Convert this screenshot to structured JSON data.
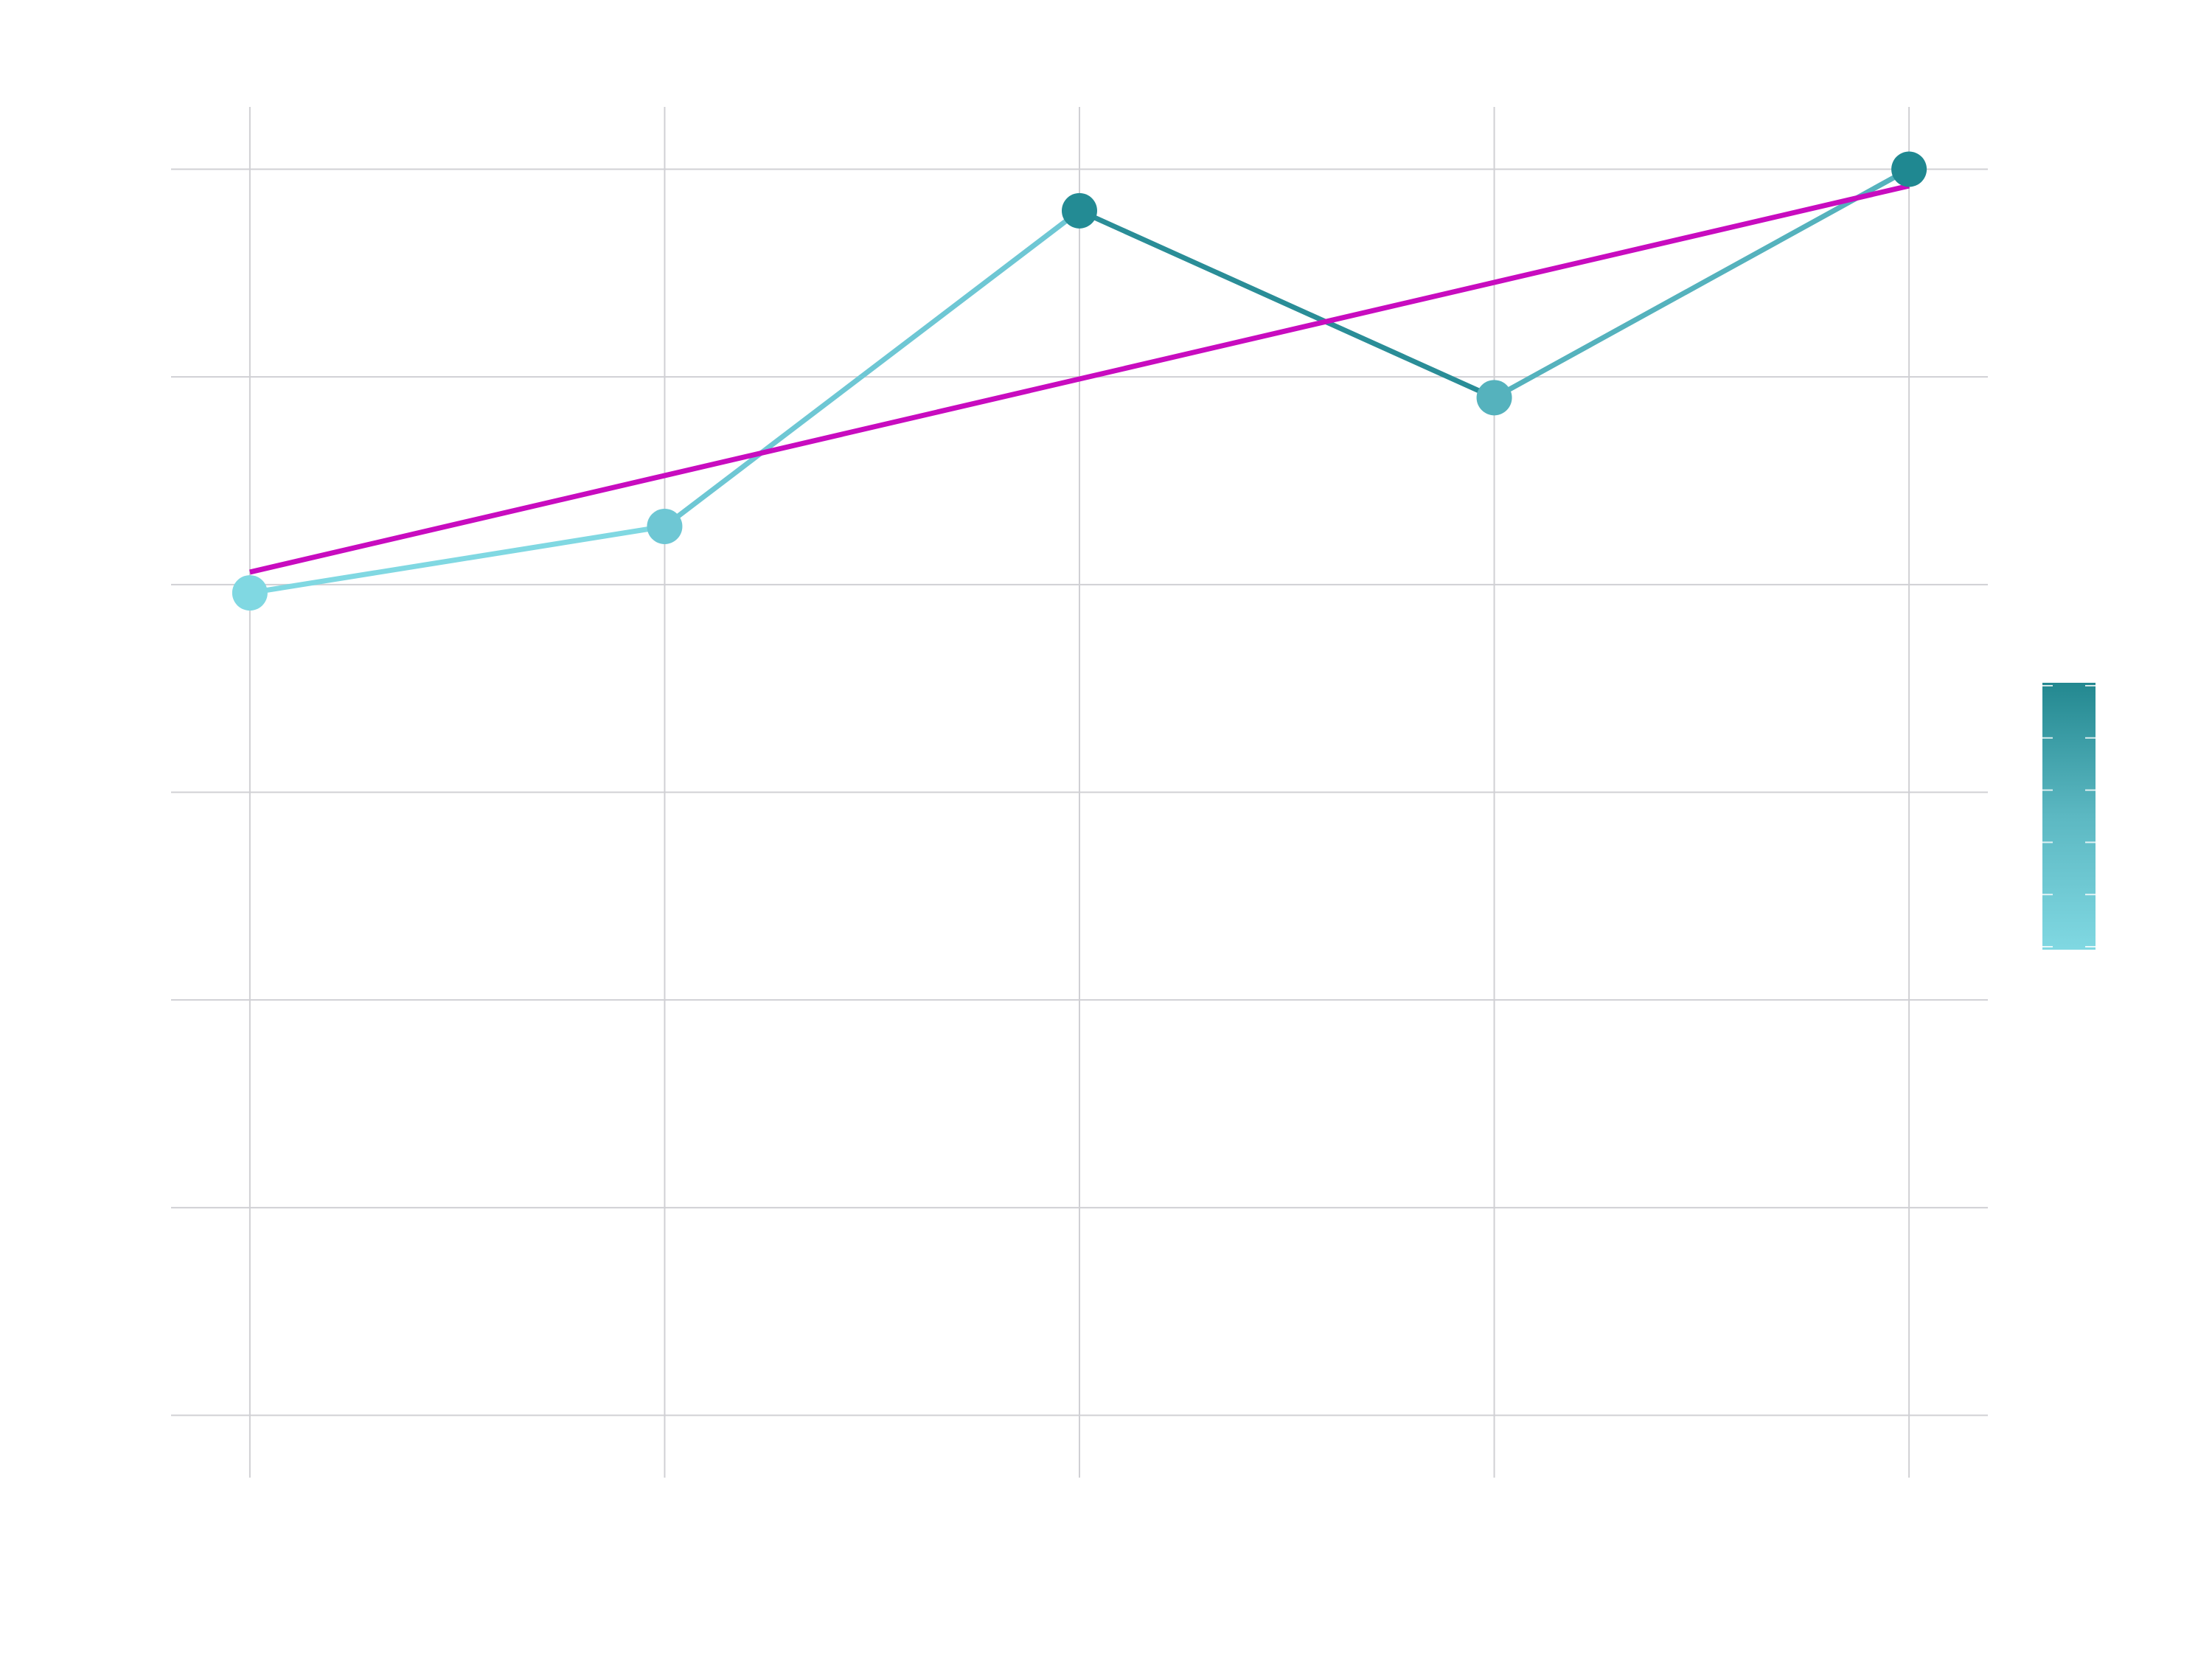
{
  "chart_data": {
    "type": "line",
    "title": "",
    "xlabel": "",
    "ylabel": "",
    "x": [
      0,
      1,
      2,
      3,
      4
    ],
    "xlim": [
      -0.19,
      4.19
    ],
    "ylim": [
      -0.15,
      3.15
    ],
    "x_gridlines": [
      0,
      1,
      2,
      3,
      4
    ],
    "y_gridlines": [
      0,
      0.5,
      1,
      1.5,
      2,
      2.5,
      3
    ],
    "series": [
      {
        "role": "data",
        "values": [
          1.98,
          2.14,
          2.9,
          2.45,
          3.0
        ],
        "marker_colors": [
          "#80d8e2",
          "#6ec7d4",
          "#238b94",
          "#55b2bd",
          "#1f8891"
        ],
        "segment_colors": [
          "#80d8e2",
          "#6ec7d4",
          "#2a8d97",
          "#55b2bd"
        ]
      },
      {
        "role": "trend",
        "color": "#c80cbf",
        "start": {
          "x": 0,
          "y": 2.03
        },
        "end": {
          "x": 4,
          "y": 2.96
        }
      }
    ],
    "colorbar": {
      "placement": "right",
      "colors": [
        "#80d8e2",
        "#5cb8c2",
        "#238890"
      ],
      "ticks": 6
    },
    "grid": true,
    "legend": "none"
  }
}
